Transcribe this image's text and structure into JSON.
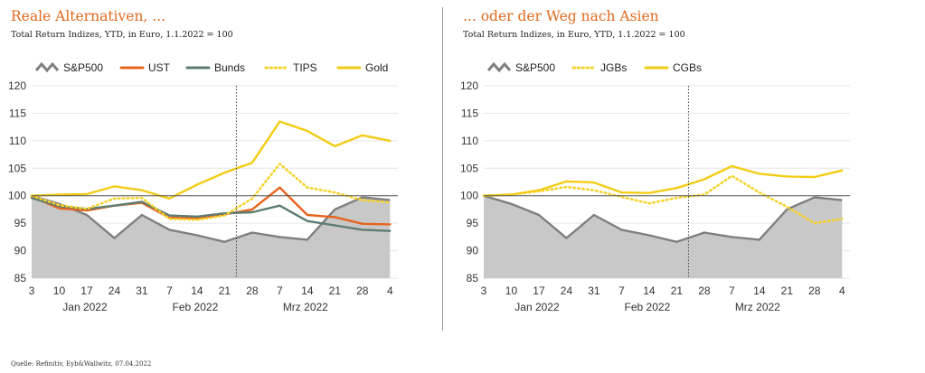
{
  "footer": {
    "source": "Quelle: Refinitiv, Eyb&Wallwitz, 07.04.2022"
  },
  "chart_data": [
    {
      "type": "line",
      "title": "Reale Alternativen, ...",
      "subtitle": "Total Return Indizes, YTD, in Euro, 1.1.2022 = 100",
      "ylim": [
        85,
        120
      ],
      "yticks": [
        85,
        90,
        95,
        100,
        105,
        110,
        115,
        120
      ],
      "x": [
        "2022-01-03",
        "2022-01-10",
        "2022-01-17",
        "2022-01-24",
        "2022-01-31",
        "2022-02-07",
        "2022-02-14",
        "2022-02-21",
        "2022-02-28",
        "2022-03-07",
        "2022-03-14",
        "2022-03-21",
        "2022-03-28",
        "2022-04-04"
      ],
      "xlim": [
        "2022-01-03",
        "2022-04-06"
      ],
      "xticks": [
        "3",
        "10",
        "17",
        "24",
        "31",
        "7",
        "14",
        "21",
        "28",
        "7",
        "14",
        "21",
        "28",
        "4"
      ],
      "xtick_dates": [
        "2022-01-03",
        "2022-01-10",
        "2022-01-17",
        "2022-01-24",
        "2022-01-31",
        "2022-02-07",
        "2022-02-14",
        "2022-02-21",
        "2022-02-28",
        "2022-03-07",
        "2022-03-14",
        "2022-03-21",
        "2022-03-28",
        "2022-04-04"
      ],
      "month_labels": [
        {
          "label": "Jan 2022",
          "date": "2022-01-17"
        },
        {
          "label": "Feb 2022",
          "date": "2022-02-14"
        },
        {
          "label": "Mrz 2022",
          "date": "2022-03-14"
        }
      ],
      "vline": "2022-02-24",
      "reference_line": 100,
      "grid": true,
      "legend_position": "top",
      "series": [
        {
          "name": "S&P500",
          "style": "area",
          "color": "#7f7f7f",
          "fill": "#c8c8c8",
          "values": [
            100.0,
            98.5,
            96.5,
            92.3,
            96.5,
            93.8,
            92.8,
            91.6,
            93.3,
            92.5,
            92.0,
            97.5,
            99.7,
            99.2
          ]
        },
        {
          "name": "UST",
          "style": "line",
          "color": "#e8631c",
          "values": [
            99.8,
            97.7,
            97.3,
            98.2,
            98.7,
            96.0,
            95.9,
            96.6,
            97.5,
            101.5,
            96.5,
            96.1,
            94.9,
            94.8
          ]
        },
        {
          "name": "Bunds",
          "style": "line",
          "color": "#5e7d72",
          "values": [
            99.6,
            98.1,
            97.6,
            98.2,
            98.9,
            96.4,
            96.2,
            96.8,
            97.0,
            98.2,
            95.4,
            94.6,
            93.8,
            93.6
          ]
        },
        {
          "name": "TIPS",
          "style": "dotted",
          "color": "#f6d32c",
          "values": [
            100.0,
            98.3,
            97.6,
            99.5,
            99.6,
            95.8,
            95.6,
            96.4,
            99.5,
            105.8,
            101.5,
            100.6,
            99.2,
            98.8
          ]
        },
        {
          "name": "Gold",
          "style": "line",
          "color": "#f2cc14",
          "values": [
            100.0,
            100.2,
            100.3,
            101.7,
            101.0,
            99.5,
            102.0,
            104.2,
            106.0,
            113.5,
            111.8,
            109.0,
            111.0,
            110.0
          ]
        }
      ]
    },
    {
      "type": "line",
      "title": "... oder der Weg nach Asien",
      "subtitle": "Total Return Indizes, in Euro, YTD, 1.1.2022 = 100",
      "ylim": [
        85,
        120
      ],
      "yticks": [
        85,
        90,
        95,
        100,
        105,
        110,
        115,
        120
      ],
      "x": [
        "2022-01-03",
        "2022-01-10",
        "2022-01-17",
        "2022-01-24",
        "2022-01-31",
        "2022-02-07",
        "2022-02-14",
        "2022-02-21",
        "2022-02-28",
        "2022-03-07",
        "2022-03-14",
        "2022-03-21",
        "2022-03-28",
        "2022-04-04"
      ],
      "xlim": [
        "2022-01-03",
        "2022-04-06"
      ],
      "xticks": [
        "3",
        "10",
        "17",
        "24",
        "31",
        "7",
        "14",
        "21",
        "28",
        "7",
        "14",
        "21",
        "28",
        "4"
      ],
      "xtick_dates": [
        "2022-01-03",
        "2022-01-10",
        "2022-01-17",
        "2022-01-24",
        "2022-01-31",
        "2022-02-07",
        "2022-02-14",
        "2022-02-21",
        "2022-02-28",
        "2022-03-07",
        "2022-03-14",
        "2022-03-21",
        "2022-03-28",
        "2022-04-04"
      ],
      "month_labels": [
        {
          "label": "Jan 2022",
          "date": "2022-01-17"
        },
        {
          "label": "Feb 2022",
          "date": "2022-02-14"
        },
        {
          "label": "Mrz 2022",
          "date": "2022-03-14"
        }
      ],
      "vline": "2022-02-24",
      "reference_line": 100,
      "grid": true,
      "legend_position": "top",
      "series": [
        {
          "name": "S&P500",
          "style": "area",
          "color": "#7f7f7f",
          "fill": "#c8c8c8",
          "values": [
            100.0,
            98.5,
            96.5,
            92.3,
            96.5,
            93.8,
            92.8,
            91.6,
            93.3,
            92.5,
            92.0,
            97.5,
            99.7,
            99.2
          ]
        },
        {
          "name": "JGBs",
          "style": "dotted",
          "color": "#f6d32c",
          "values": [
            100.0,
            100.2,
            100.8,
            101.6,
            101.0,
            99.8,
            98.6,
            99.6,
            100.2,
            103.6,
            100.6,
            98.0,
            95.0,
            95.8
          ]
        },
        {
          "name": "CGBs",
          "style": "line",
          "color": "#f2cc14",
          "values": [
            100.0,
            100.2,
            101.0,
            102.6,
            102.4,
            100.6,
            100.5,
            101.4,
            103.0,
            105.4,
            104.0,
            103.5,
            103.4,
            104.6
          ]
        }
      ]
    }
  ]
}
